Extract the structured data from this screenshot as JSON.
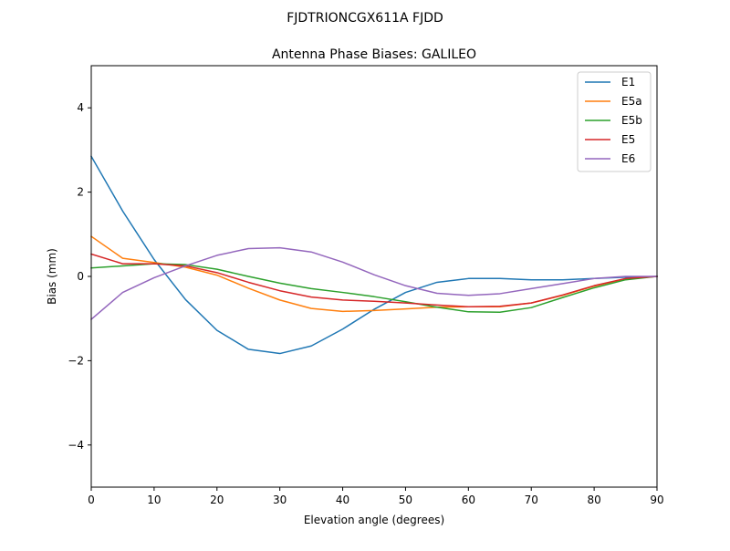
{
  "chart_data": {
    "type": "line",
    "suptitle": "FJDTRIONCGX611A FJDD",
    "title": "Antenna Phase Biases: GALILEO",
    "xlabel": "Elevation angle (degrees)",
    "ylabel": "Bias (mm)",
    "xlim": [
      0,
      90
    ],
    "ylim": [
      -5,
      5
    ],
    "xticks": [
      0,
      10,
      20,
      30,
      40,
      50,
      60,
      70,
      80,
      90
    ],
    "yticks": [
      -4,
      -2,
      0,
      2,
      4
    ],
    "ytick_labels": [
      "−4",
      "−2",
      "0",
      "2",
      "4"
    ],
    "grid": false,
    "legend_position": "top-right",
    "x": [
      0,
      5,
      10,
      15,
      20,
      25,
      30,
      35,
      40,
      45,
      50,
      55,
      60,
      65,
      70,
      75,
      80,
      85,
      90
    ],
    "series": [
      {
        "name": "E1",
        "color": "#1f77b4",
        "values": [
          2.85,
          1.55,
          0.4,
          -0.55,
          -1.28,
          -1.73,
          -1.83,
          -1.65,
          -1.25,
          -0.78,
          -0.38,
          -0.14,
          -0.05,
          -0.05,
          -0.08,
          -0.08,
          -0.05,
          -0.02,
          0.0
        ]
      },
      {
        "name": "E5a",
        "color": "#ff7f0e",
        "values": [
          0.95,
          0.43,
          0.33,
          0.22,
          0.03,
          -0.28,
          -0.56,
          -0.76,
          -0.83,
          -0.81,
          -0.77,
          -0.73,
          -0.72,
          -0.72,
          -0.63,
          -0.45,
          -0.23,
          -0.06,
          0.0
        ]
      },
      {
        "name": "E5b",
        "color": "#2ca02c",
        "values": [
          0.2,
          0.25,
          0.3,
          0.28,
          0.17,
          0.0,
          -0.16,
          -0.29,
          -0.38,
          -0.48,
          -0.6,
          -0.73,
          -0.84,
          -0.85,
          -0.74,
          -0.5,
          -0.27,
          -0.08,
          0.0
        ]
      },
      {
        "name": "E5",
        "color": "#d62728",
        "values": [
          0.53,
          0.3,
          0.3,
          0.25,
          0.09,
          -0.14,
          -0.34,
          -0.49,
          -0.56,
          -0.59,
          -0.63,
          -0.68,
          -0.72,
          -0.71,
          -0.63,
          -0.44,
          -0.22,
          -0.05,
          0.0
        ]
      },
      {
        "name": "E6",
        "color": "#9467bd",
        "values": [
          -1.02,
          -0.38,
          -0.03,
          0.25,
          0.5,
          0.66,
          0.68,
          0.58,
          0.34,
          0.04,
          -0.22,
          -0.4,
          -0.45,
          -0.41,
          -0.29,
          -0.17,
          -0.05,
          0.0,
          0.0
        ]
      }
    ]
  }
}
